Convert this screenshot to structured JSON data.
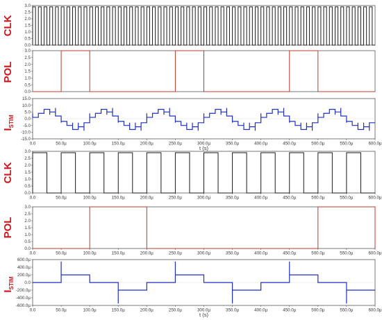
{
  "colors": {
    "clk": "#1a1a1a",
    "pol": "#c0392b",
    "istim": "#1f2fbf",
    "label": "#d0141e"
  },
  "chart_data": [
    {
      "type": "line",
      "signal": "clk",
      "label": "CLK",
      "sub": "",
      "xlim": [
        0,
        600
      ],
      "ylim": [
        0,
        3.0
      ],
      "yticks": [
        "3.0",
        "2.5",
        "2.0",
        "1.5",
        "1.0",
        "0.5",
        "0.0"
      ],
      "xticks": [],
      "xlabel": "",
      "high": 2.9,
      "period_us": 10,
      "duty": 0.5
    },
    {
      "type": "line",
      "signal": "pol",
      "label": "POL",
      "sub": "",
      "xlim": [
        0,
        600
      ],
      "ylim": [
        0,
        3.0
      ],
      "yticks": [
        "3.0",
        "2.5",
        "2.0",
        "1.5",
        "1.0",
        "0.5",
        "0.0"
      ],
      "xticks": [],
      "xlabel": "",
      "high": 3.0,
      "period_us": 100,
      "rise_us": 50,
      "fall_us": 100
    },
    {
      "type": "line",
      "signal": "istim",
      "label": "I",
      "sub": "STIM",
      "xlim": [
        0,
        600
      ],
      "ylim": [
        -15,
        15
      ],
      "yticks": [
        "15.0",
        "10.0",
        "5.0",
        "0.0",
        "-5.0",
        "-10.0",
        "-15.0"
      ],
      "xticks": [
        "0.0",
        "50.0µ",
        "100.0µ",
        "150.0µ",
        "200.0µ",
        "250.0µ",
        "300.0µ",
        "350.0µ",
        "400.0µ",
        "450.0µ",
        "500.0µ",
        "550.0µ",
        "600.0µ"
      ],
      "xlabel": "t (s)",
      "period_us": 100,
      "segments": [
        {
          "t0": 0,
          "t1": 10,
          "y": 1,
          "spike": 4
        },
        {
          "t0": 10,
          "t1": 20,
          "y": 4,
          "spike": 4
        },
        {
          "t0": 20,
          "t1": 30,
          "y": 7,
          "spike": 4
        },
        {
          "t0": 30,
          "t1": 40,
          "y": 5,
          "spike": 3
        },
        {
          "t0": 40,
          "t1": 50,
          "y": 2,
          "spike": 8
        },
        {
          "t0": 50,
          "t1": 60,
          "y": -2,
          "spike": -3
        },
        {
          "t0": 60,
          "t1": 70,
          "y": -5,
          "spike": -3
        },
        {
          "t0": 70,
          "t1": 80,
          "y": -8,
          "spike": -3
        },
        {
          "t0": 80,
          "t1": 90,
          "y": -6,
          "spike": -3
        },
        {
          "t0": 90,
          "t1": 100,
          "y": -3,
          "spike": -9
        }
      ]
    },
    {
      "type": "line",
      "signal": "clk",
      "label": "CLK",
      "sub": "",
      "xlim": [
        0,
        600
      ],
      "ylim": [
        0,
        3.0
      ],
      "yticks": [
        "3.0",
        "2.5",
        "2.0",
        "1.5",
        "1.0",
        "0.5",
        "0.0"
      ],
      "xticks": [
        "0.0",
        "50.0µ",
        "100.0µ",
        "150.0µ",
        "200.0µ",
        "250.0µ",
        "300.0µ",
        "350.0µ",
        "400.0µ",
        "450.0µ",
        "500.0µ",
        "550.0µ",
        "600.0µ"
      ],
      "xlabel": "",
      "high": 2.9,
      "period_us": 50,
      "duty": 0.5
    },
    {
      "type": "line",
      "signal": "pol",
      "label": "POL",
      "sub": "",
      "xlim": [
        0,
        600
      ],
      "ylim": [
        0,
        3.0
      ],
      "yticks": [
        "3.0",
        "2.5",
        "2.0",
        "1.5",
        "1.0",
        "0.5",
        "0.0"
      ],
      "xticks": [
        "0.0",
        "50.0µ",
        "100.0µ",
        "150.0µ",
        "200.0µ",
        "250.0µ",
        "300.0µ",
        "350.0µ",
        "400.0µ",
        "450.0µ",
        "500.0µ",
        "550.0µ",
        "600.0µ"
      ],
      "xlabel": "",
      "high": 3.0,
      "period_us": 200,
      "rise_us": 100,
      "fall_us": 200
    },
    {
      "type": "line",
      "signal": "istim",
      "label": "I",
      "sub": "STIM",
      "xlim": [
        0,
        600
      ],
      "ylim": [
        -600,
        600
      ],
      "yticks": [
        "600.0µ",
        "400.0µ",
        "200.0µ",
        "0.0",
        "-200.0µ",
        "-400.0µ",
        "-600.0µ"
      ],
      "xticks": [
        "0.0",
        "50.0µ",
        "100.0µ",
        "150.0µ",
        "200.0µ",
        "250.0µ",
        "300.0µ",
        "350.0µ",
        "400.0µ",
        "450.0µ",
        "500.0µ",
        "550.0µ",
        "600.0µ"
      ],
      "xlabel": "t (s)",
      "period_us": 200,
      "segments": [
        {
          "t0": 0,
          "t1": 50,
          "y": 0,
          "spike": 0
        },
        {
          "t0": 50,
          "t1": 100,
          "y": 200,
          "spike": 550
        },
        {
          "t0": 100,
          "t1": 150,
          "y": 0,
          "spike": 0
        },
        {
          "t0": 150,
          "t1": 200,
          "y": -200,
          "spike": -550
        }
      ]
    }
  ]
}
